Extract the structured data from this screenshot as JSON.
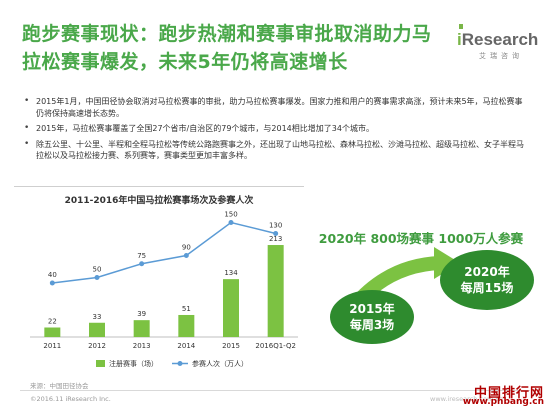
{
  "title": "跑步赛事现状：跑步热潮和赛事审批取消助力马拉松赛事爆发，未来5年仍将高速增长",
  "logo": {
    "brand_i": "i",
    "brand_rest": "Research",
    "sub": "艾瑞咨询",
    "accent": "#7ab648"
  },
  "bullets": [
    "2015年1月，中国田径协会取消对马拉松赛事的审批，助力马拉松赛事爆发。国家力推和用户的赛事需求高涨，预计未来5年，马拉松赛事仍将保持高速增长态势。",
    "2015年，马拉松赛事覆盖了全国27个省市/自治区的79个城市，与2014相比增加了34个城市。",
    "除五公里、十公里、半程和全程马拉松等传统公路跑赛事之外，还出现了山地马拉松、森林马拉松、沙滩马拉松、超级马拉松、女子半程马拉松以及马拉松接力赛、系列赛等，赛事类型更加丰富多样。"
  ],
  "goal_text": "2020年    800场赛事    1000万人参赛",
  "circle_2015": {
    "line1": "2015年",
    "line2": "每周3场"
  },
  "circle_2020": {
    "line1": "2020年",
    "line2": "每周15场"
  },
  "source": "来源：中国田径协会",
  "copyright": "©2016.11 iResearch Inc.",
  "page_url": "www.iresearch.com.cn",
  "watermark": {
    "top": "中国排行网",
    "url": "www.phbang.cn"
  },
  "colors": {
    "title_green": "#4aa84a",
    "bar_green": "#7cc242",
    "line_blue": "#5b9bd5",
    "circle_green": "#2e8b2e"
  },
  "chart_data": {
    "type": "bar",
    "title": "2011-2016年中国马拉松赛事场次及参赛人次",
    "categories": [
      "2011",
      "2012",
      "2013",
      "2014",
      "2015",
      "2016Q1-Q2"
    ],
    "series": [
      {
        "name": "注册赛事（场）",
        "type": "bar",
        "values": [
          22,
          33,
          39,
          51,
          134,
          213
        ]
      },
      {
        "name": "参赛人次（万人）",
        "type": "line",
        "values": [
          40,
          50,
          75,
          90,
          150,
          130
        ]
      }
    ],
    "legend_position": "bottom",
    "grid": false
  }
}
